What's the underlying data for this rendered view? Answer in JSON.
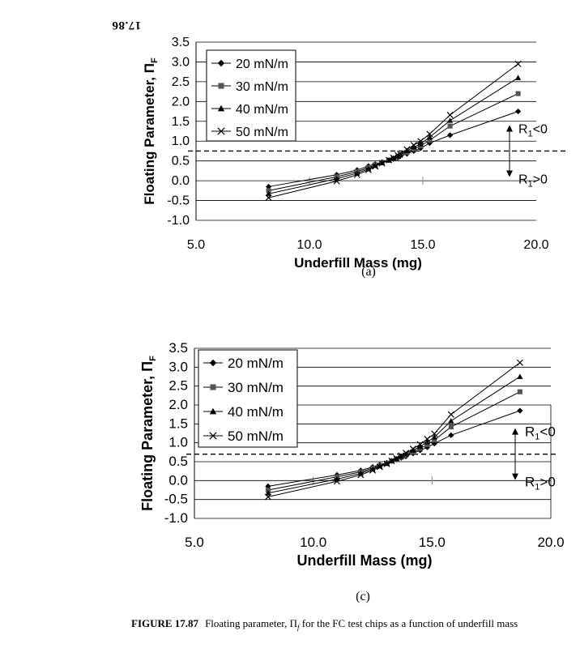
{
  "page_number": "17.86",
  "caption": {
    "label": "FIGURE 17.87",
    "text": "Floating parameter, Π",
    "subscript": "f",
    "rest": " for the FC test chips as a function of underfill mass"
  },
  "colors": {
    "line": "#000000",
    "grid": "#000000",
    "marker_dark": "#000000",
    "marker_gray": "#555555"
  },
  "chart_data": [
    {
      "type": "line",
      "panel": "(a)",
      "xlabel": "Underfill Mass (mg)",
      "ylabel": "Floating Parameter,  Π",
      "ylabel_sub": "F",
      "xlim": [
        5.0,
        20.0
      ],
      "ylim": [
        -1.0,
        3.5
      ],
      "xticks": [
        "5.0",
        "10.0",
        "15.0",
        "20.0"
      ],
      "yticks": [
        "-1.0",
        "-0.5",
        "0.0",
        "0.5",
        "1.0",
        "1.5",
        "2.0",
        "2.5",
        "3.0",
        "3.5"
      ],
      "threshold": 0.75,
      "annotation_upper": "R",
      "annotation_upper_rest": "<0",
      "annotation_lower": "R",
      "annotation_lower_rest": ">0",
      "annotation_sub": "1",
      "series": [
        {
          "name": "20 mN/m",
          "marker": "diamond",
          "x": [
            8.2,
            11.2,
            12.1,
            12.6,
            12.9,
            13.2,
            13.5,
            13.7,
            13.9,
            14.0,
            14.3,
            14.6,
            14.9,
            15.3,
            16.2,
            19.2
          ],
          "y": [
            -0.15,
            0.15,
            0.27,
            0.37,
            0.42,
            0.47,
            0.52,
            0.55,
            0.58,
            0.62,
            0.68,
            0.75,
            0.82,
            0.95,
            1.15,
            1.75
          ]
        },
        {
          "name": "30 mN/m",
          "marker": "square",
          "x": [
            8.2,
            11.2,
            12.1,
            12.6,
            12.9,
            13.2,
            13.5,
            13.7,
            13.9,
            14.0,
            14.3,
            14.6,
            14.9,
            15.3,
            16.2,
            19.2
          ],
          "y": [
            -0.25,
            0.1,
            0.23,
            0.33,
            0.4,
            0.46,
            0.52,
            0.56,
            0.6,
            0.64,
            0.72,
            0.8,
            0.88,
            1.02,
            1.38,
            2.2
          ]
        },
        {
          "name": "40 mN/m",
          "marker": "triangle",
          "x": [
            8.2,
            11.2,
            12.1,
            12.6,
            12.9,
            13.2,
            13.5,
            13.7,
            13.9,
            14.0,
            14.3,
            14.6,
            14.9,
            15.3,
            16.2,
            19.2
          ],
          "y": [
            -0.33,
            0.05,
            0.19,
            0.3,
            0.38,
            0.45,
            0.52,
            0.57,
            0.62,
            0.66,
            0.76,
            0.85,
            0.93,
            1.1,
            1.52,
            2.6
          ]
        },
        {
          "name": "50 mN/m",
          "marker": "x",
          "x": [
            8.2,
            11.2,
            12.1,
            12.6,
            12.9,
            13.2,
            13.5,
            13.7,
            13.9,
            14.0,
            14.3,
            14.6,
            14.9,
            15.3,
            16.2,
            19.2
          ],
          "y": [
            -0.43,
            -0.01,
            0.15,
            0.27,
            0.36,
            0.44,
            0.52,
            0.58,
            0.64,
            0.68,
            0.79,
            0.9,
            1.0,
            1.18,
            1.66,
            2.95
          ]
        }
      ]
    },
    {
      "type": "line",
      "panel": "(c)",
      "xlabel": "Underfill Mass (mg)",
      "ylabel": "Floating Parameter,  Π",
      "ylabel_sub": "F",
      "xlim": [
        5.0,
        20.0
      ],
      "ylim": [
        -1.0,
        3.5
      ],
      "xticks": [
        "5.0",
        "10.0",
        "15.0",
        "20.0"
      ],
      "yticks": [
        "-1.0",
        "-0.5",
        "0.0",
        "0.5",
        "1.0",
        "1.5",
        "2.0",
        "2.5",
        "3.0",
        "3.5"
      ],
      "threshold": 0.7,
      "annotation_upper": "R",
      "annotation_upper_rest": "<0",
      "annotation_lower": "R",
      "annotation_lower_rest": ">0",
      "annotation_sub": "1",
      "series": [
        {
          "name": "20 mN/m",
          "marker": "diamond",
          "x": [
            8.1,
            11.0,
            12.0,
            12.5,
            12.8,
            13.1,
            13.3,
            13.5,
            13.7,
            13.9,
            14.2,
            14.5,
            14.8,
            15.1,
            15.8,
            18.7
          ],
          "y": [
            -0.15,
            0.15,
            0.27,
            0.36,
            0.42,
            0.47,
            0.52,
            0.56,
            0.6,
            0.64,
            0.72,
            0.8,
            0.88,
            0.98,
            1.2,
            1.85
          ]
        },
        {
          "name": "30 mN/m",
          "marker": "square",
          "x": [
            8.1,
            11.0,
            12.0,
            12.5,
            12.8,
            13.1,
            13.3,
            13.5,
            13.7,
            13.9,
            14.2,
            14.5,
            14.8,
            15.1,
            15.8,
            18.7
          ],
          "y": [
            -0.25,
            0.1,
            0.23,
            0.33,
            0.4,
            0.46,
            0.52,
            0.57,
            0.62,
            0.67,
            0.76,
            0.85,
            0.95,
            1.07,
            1.42,
            2.35
          ]
        },
        {
          "name": "40 mN/m",
          "marker": "triangle",
          "x": [
            8.1,
            11.0,
            12.0,
            12.5,
            12.8,
            13.1,
            13.3,
            13.5,
            13.7,
            13.9,
            14.2,
            14.5,
            14.8,
            15.1,
            15.8,
            18.7
          ],
          "y": [
            -0.33,
            0.04,
            0.19,
            0.3,
            0.38,
            0.45,
            0.52,
            0.58,
            0.64,
            0.7,
            0.8,
            0.9,
            1.02,
            1.15,
            1.58,
            2.75
          ]
        },
        {
          "name": "50 mN/m",
          "marker": "x",
          "x": [
            8.1,
            11.0,
            12.0,
            12.5,
            12.8,
            13.1,
            13.3,
            13.5,
            13.7,
            13.9,
            14.2,
            14.5,
            14.8,
            15.1,
            15.8,
            18.7
          ],
          "y": [
            -0.43,
            -0.02,
            0.15,
            0.27,
            0.36,
            0.44,
            0.52,
            0.59,
            0.66,
            0.73,
            0.84,
            0.96,
            1.1,
            1.24,
            1.75,
            3.12
          ]
        }
      ]
    }
  ]
}
